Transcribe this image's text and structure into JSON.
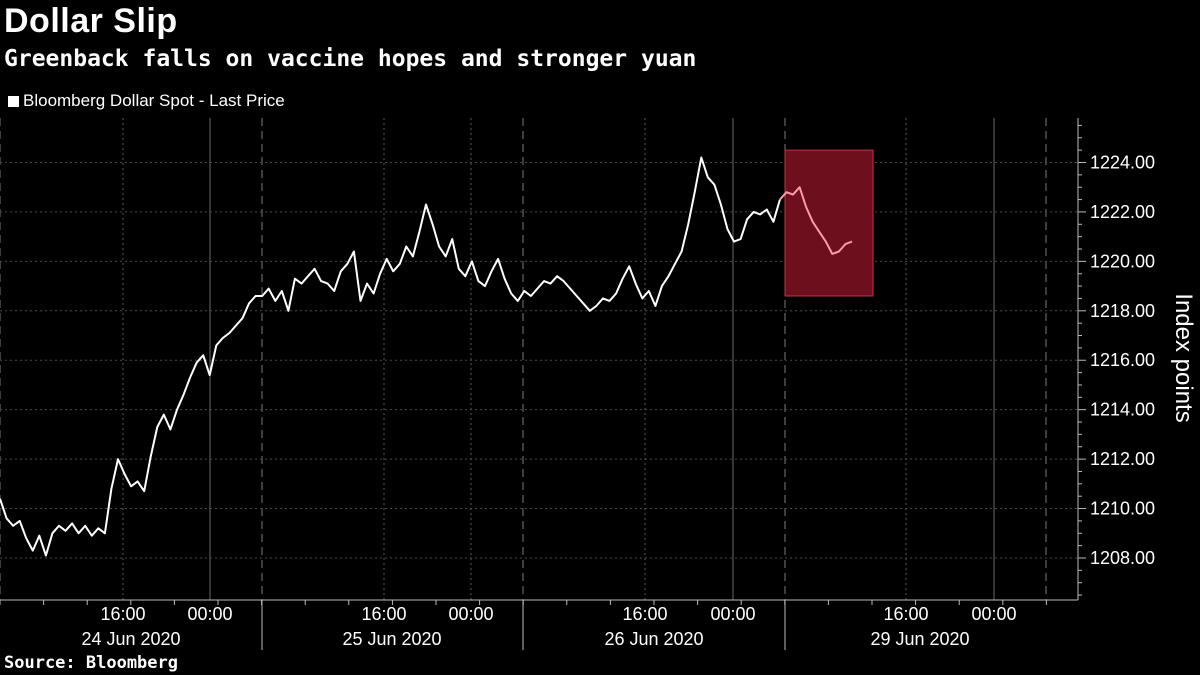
{
  "chart_data": {
    "type": "line",
    "title": "Dollar Slip",
    "subtitle": "Greenback falls on vaccine hopes and stronger yuan",
    "legend": "Bloomberg Dollar Spot - Last Price",
    "ylabel": "Index points",
    "source": "Source: Bloomberg",
    "ylim": [
      1206.3,
      1225.8
    ],
    "yticks": [
      1208.0,
      1210.0,
      1212.0,
      1214.0,
      1216.0,
      1218.0,
      1220.0,
      1222.0,
      1224.0
    ],
    "time_labels": [
      "16:00",
      "00:00",
      "16:00",
      "00:00",
      "16:00",
      "00:00",
      "16:00",
      "00:00"
    ],
    "date_labels": [
      "24 Jun 2020",
      "25 Jun 2020",
      "26 Jun 2020",
      "29 Jun 2020"
    ],
    "series_color": "#ffffff",
    "highlight_color": "#ff9aa6",
    "highlight_fill": "#6e0f1e",
    "highlight_range": {
      "y_low": 1218.6,
      "y_high": 1224.5
    },
    "series": [
      {
        "name": "Bloomberg Dollar Spot - Last Price",
        "values": [
          1210.4,
          1209.6,
          1209.3,
          1209.5,
          1208.8,
          1208.3,
          1208.9,
          1208.1,
          1209.0,
          1209.3,
          1209.1,
          1209.4,
          1209.0,
          1209.3,
          1208.9,
          1209.2,
          1209.0,
          1210.8,
          1212.0,
          1211.4,
          1210.9,
          1211.1,
          1210.7,
          1212.1,
          1213.3,
          1213.8,
          1213.2,
          1214.0,
          1214.6,
          1215.3,
          1215.9,
          1216.2,
          1215.4,
          1216.6,
          1216.9,
          1217.1,
          1217.4,
          1217.7,
          1218.3,
          1218.6,
          1218.6,
          1218.9,
          1218.4,
          1218.8,
          1218.0,
          1219.3,
          1219.1,
          1219.4,
          1219.7,
          1219.2,
          1219.1,
          1218.8,
          1219.6,
          1219.9,
          1220.4,
          1218.4,
          1219.1,
          1218.7,
          1219.5,
          1220.1,
          1219.6,
          1219.9,
          1220.6,
          1220.2,
          1221.2,
          1222.3,
          1221.5,
          1220.6,
          1220.2,
          1220.9,
          1219.7,
          1219.4,
          1220.0,
          1219.2,
          1219.0,
          1219.6,
          1220.1,
          1219.3,
          1218.7,
          1218.4,
          1218.8,
          1218.6,
          1218.9,
          1219.2,
          1219.1,
          1219.4,
          1219.2,
          1218.9,
          1218.6,
          1218.3,
          1218.0,
          1218.2,
          1218.5,
          1218.4,
          1218.7,
          1219.3,
          1219.8,
          1219.1,
          1218.5,
          1218.8,
          1218.2,
          1219.0,
          1219.4,
          1219.9,
          1220.4,
          1221.5,
          1222.8,
          1224.2,
          1223.4,
          1223.1,
          1222.3,
          1221.3,
          1220.8,
          1220.9,
          1221.7,
          1222.0,
          1221.9,
          1222.1,
          1221.6,
          1222.5,
          1222.8,
          1222.7,
          1223.0,
          1222.2,
          1221.6,
          1221.2,
          1220.8,
          1220.3,
          1220.4,
          1220.7,
          1220.8
        ]
      }
    ]
  }
}
